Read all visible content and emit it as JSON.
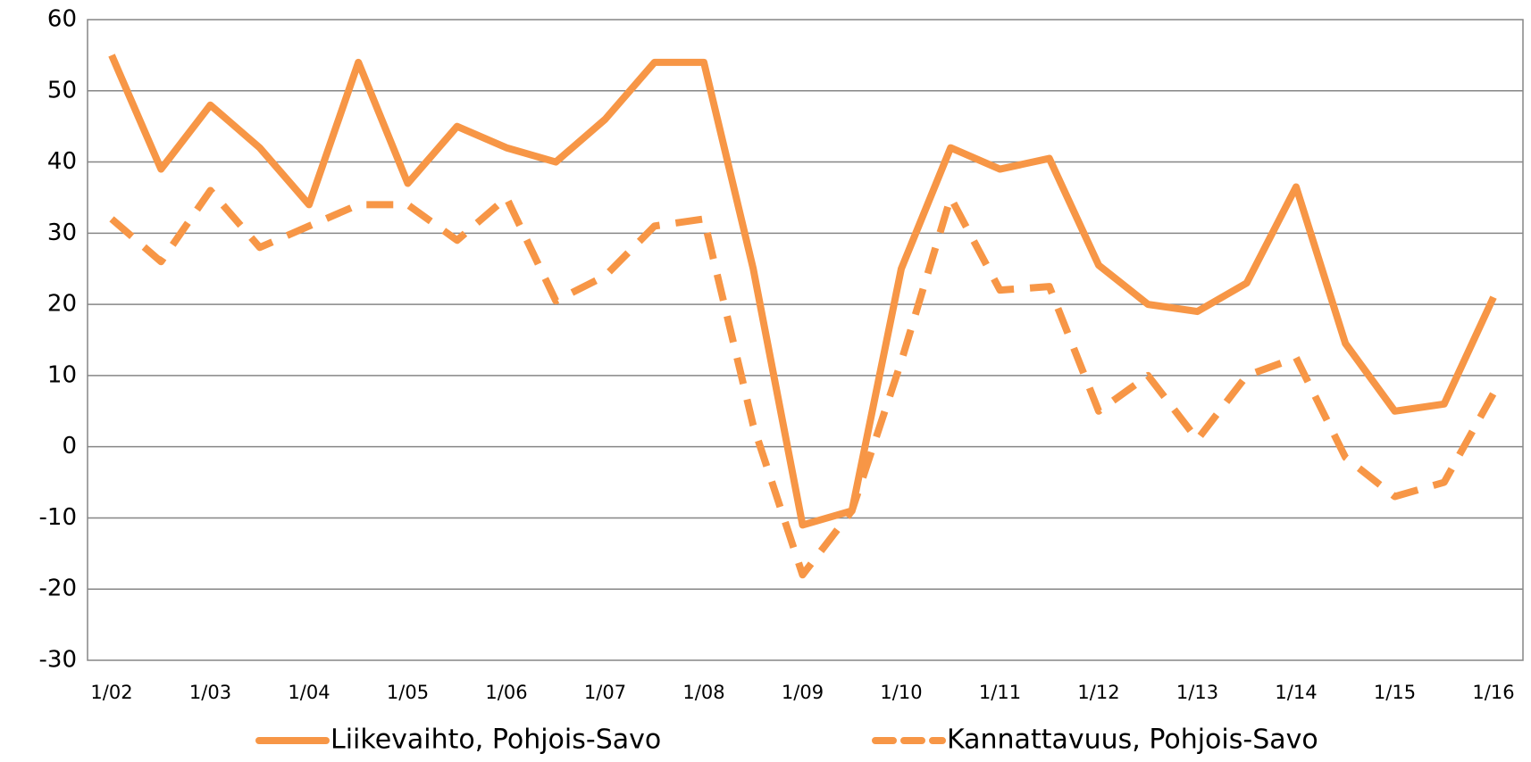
{
  "chart_data": {
    "type": "line",
    "categories": [
      "1/02",
      null,
      "1/03",
      null,
      "1/04",
      null,
      "1/05",
      null,
      "1/06",
      null,
      "1/07",
      null,
      "1/08",
      null,
      "1/09",
      null,
      "1/10",
      null,
      "1/11",
      null,
      "1/12",
      null,
      "1/13",
      null,
      "1/14",
      null,
      "1/15",
      null,
      "1/16"
    ],
    "series": [
      {
        "name": "Liikevaihto, Pohjois-Savo",
        "color": "#f79646",
        "dash": false,
        "values": [
          55,
          39,
          48,
          42,
          34,
          54,
          37,
          45,
          42,
          40,
          46,
          54,
          54,
          25,
          -11,
          -9,
          25,
          42,
          39,
          40.5,
          25.5,
          20,
          19,
          23,
          36.5,
          14.5,
          5,
          6,
          21
        ]
      },
      {
        "name": "Kannattavuus, Pohjois-Savo",
        "color": "#f79646",
        "dash": true,
        "values": [
          32,
          26,
          36,
          28,
          31,
          34,
          34,
          29,
          35,
          20.5,
          24,
          31,
          32,
          3,
          -18,
          -9,
          12,
          35,
          22,
          22.5,
          5,
          10,
          1,
          10,
          12.5,
          -1.5,
          -7,
          -5,
          7.5
        ]
      }
    ],
    "ylim": [
      -30,
      60
    ],
    "yticks": [
      -30,
      -20,
      -10,
      0,
      10,
      20,
      30,
      40,
      50,
      60
    ],
    "grid": true,
    "legend": "bottom"
  }
}
